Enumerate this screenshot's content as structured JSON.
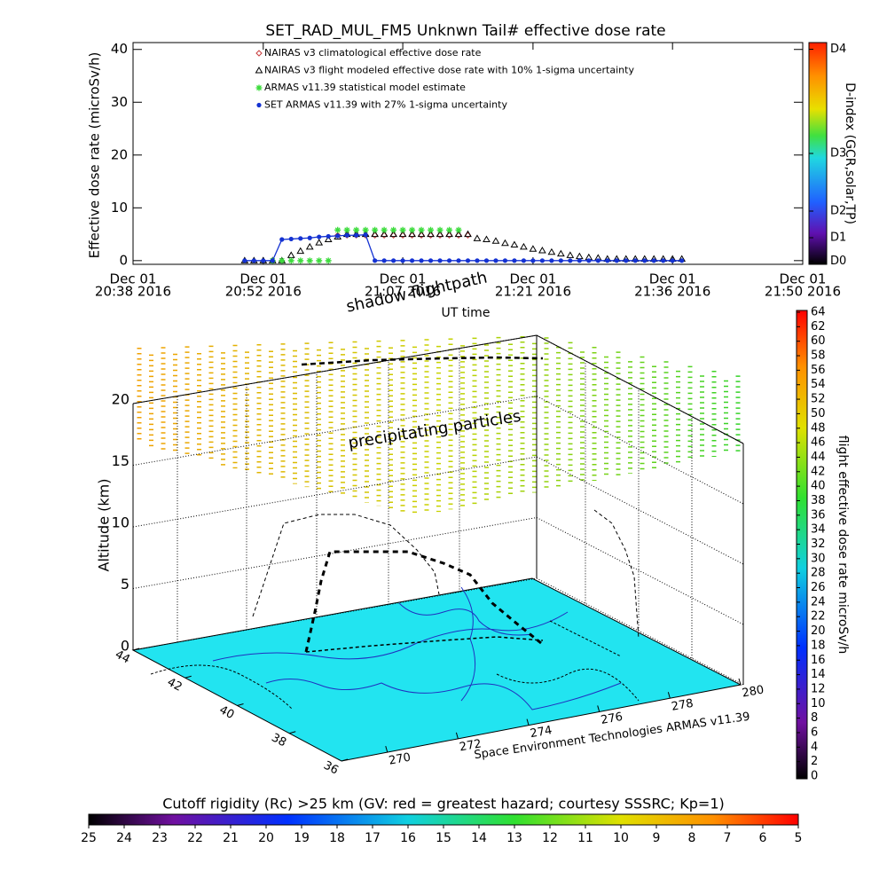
{
  "chart_data": [
    {
      "type": "line",
      "title": "SET_RAD_MUL_FM5 Unknwn Tail#  effective dose rate",
      "x_label": "UT time",
      "y_label": "Effective dose rate (microSv/h)",
      "x": [
        "20:50",
        "20:51",
        "20:52",
        "20:53",
        "20:54",
        "20:55",
        "20:56",
        "20:57",
        "20:58",
        "20:59",
        "21:00",
        "21:01",
        "21:02",
        "21:03",
        "21:04",
        "21:05",
        "21:06",
        "21:07",
        "21:08",
        "21:09",
        "21:10",
        "21:11",
        "21:12",
        "21:13",
        "21:14",
        "21:15",
        "21:16",
        "21:17",
        "21:18",
        "21:19",
        "21:20",
        "21:21",
        "21:22",
        "21:23",
        "21:24",
        "21:25",
        "21:26",
        "21:27",
        "21:28",
        "21:29",
        "21:30",
        "21:31",
        "21:32",
        "21:33",
        "21:34",
        "21:35",
        "21:36",
        "21:37"
      ],
      "xlim": [
        "20:38",
        "21:50"
      ],
      "xticks": [
        {
          "value": "20:38",
          "label": [
            "Dec 01",
            "20:38 2016"
          ]
        },
        {
          "value": "20:52",
          "label": [
            "Dec 01",
            "20:52 2016"
          ]
        },
        {
          "value": "21:07",
          "label": [
            "Dec 01",
            "21:07 2016"
          ]
        },
        {
          "value": "21:21",
          "label": [
            "Dec 01",
            "21:21 2016"
          ]
        },
        {
          "value": "21:36",
          "label": [
            "Dec 01",
            "21:36 2016"
          ]
        },
        {
          "value": "21:50",
          "label": [
            "Dec 01",
            "21:50 2016"
          ]
        }
      ],
      "ylim": [
        -0.7,
        41.3
      ],
      "yticks": [
        0,
        10,
        20,
        30,
        40
      ],
      "legend": "upper left",
      "series": [
        {
          "name": "NAIRAS v3 climatological effective dose rate",
          "color": "#c83c3c",
          "marker": "diamond",
          "values": [
            null,
            null,
            null,
            null,
            null,
            null,
            null,
            null,
            null,
            null,
            4.8,
            4.8,
            4.8,
            4.8,
            4.8,
            4.8,
            4.8,
            4.8,
            4.8,
            4.8,
            4.8,
            4.8,
            4.8,
            4.8,
            4.8,
            null,
            null,
            null,
            null,
            null,
            null,
            null,
            null,
            null,
            null,
            null,
            null,
            null,
            null,
            null,
            null,
            null,
            null,
            null,
            null,
            null,
            null,
            null
          ]
        },
        {
          "name": "NAIRAS v3 flight modeled effective dose rate with 10% 1-sigma uncertainty",
          "color": "#000000",
          "marker": "triangle",
          "values": [
            0,
            0,
            0,
            0,
            0,
            1.0,
            1.8,
            2.6,
            3.4,
            4.0,
            4.5,
            5.0,
            5.0,
            5.0,
            5.0,
            5.0,
            5.0,
            5.0,
            5.0,
            5.0,
            5.0,
            5.0,
            5.0,
            5.0,
            5.0,
            4.2,
            4.0,
            3.7,
            3.3,
            3.0,
            2.6,
            2.2,
            1.9,
            1.6,
            1.3,
            1.0,
            0.8,
            0.6,
            0.5,
            0.3,
            0.3,
            0.3,
            0.3,
            0.3,
            0.3,
            0.3,
            0.3,
            0.3
          ]
        },
        {
          "name": "ARMAS v11.39 statistical model estimate",
          "color": "#3cdc3c",
          "marker": "star",
          "values": [
            null,
            null,
            null,
            0,
            0,
            0,
            0,
            0,
            0,
            0,
            5.8,
            5.8,
            5.8,
            5.8,
            5.8,
            5.8,
            5.8,
            5.8,
            5.8,
            5.8,
            5.8,
            5.8,
            5.8,
            5.8,
            null,
            null,
            null,
            null,
            null,
            null,
            null,
            null,
            null,
            null,
            null,
            null,
            null,
            null,
            null,
            null,
            null,
            null,
            null,
            null,
            null,
            null,
            null,
            null
          ]
        },
        {
          "name": "SET ARMAS v11.39 with 27% 1-sigma uncertainty",
          "color": "#1432d2",
          "marker": "dot",
          "line": true,
          "values": [
            0,
            0,
            0,
            0,
            4.0,
            4.1,
            4.2,
            4.3,
            4.5,
            4.6,
            4.7,
            4.8,
            4.8,
            4.9,
            0,
            0,
            0,
            0,
            0,
            0,
            0,
            0,
            0,
            0,
            0,
            0,
            0,
            0,
            0,
            0,
            0,
            0,
            0,
            0,
            0,
            0,
            0,
            0,
            0,
            0,
            0,
            0,
            0,
            0,
            0,
            0,
            0,
            0
          ]
        }
      ],
      "colorbar": {
        "label": "D-index (GCR,solar,TP)",
        "ticks": [
          "D4",
          "D3",
          "D2",
          "D1",
          "D0"
        ]
      }
    },
    {
      "type": "surface3d",
      "annotations": [
        "shadow flightpath",
        "precipitating particles"
      ],
      "z_label": "Altitude (km)",
      "zlim": [
        0,
        20
      ],
      "zticks": [
        0,
        5,
        10,
        15,
        20
      ],
      "ylim": [
        36,
        44
      ],
      "yticks": [
        44,
        42,
        40,
        38,
        36
      ],
      "xlim": [
        268.7,
        280
      ],
      "xticks": [
        270,
        272,
        274,
        276,
        278,
        280
      ],
      "credit": "Space Environment Technologies ARMAS v11.39",
      "floor_color": "#22e4f0",
      "colorbar": {
        "label": "flight effective dose rate microSv/h",
        "lim": [
          0,
          64
        ],
        "ticks": [
          0,
          2,
          4,
          6,
          8,
          10,
          12,
          14,
          16,
          18,
          20,
          22,
          24,
          26,
          28,
          30,
          32,
          34,
          36,
          38,
          40,
          42,
          44,
          46,
          48,
          50,
          52,
          54,
          56,
          58,
          60,
          62,
          64
        ]
      }
    },
    {
      "type": "colorbar",
      "title": "Cutoff rigidity (Rc) >25 km (GV: red = greatest hazard; courtesy SSSRC; Kp=1)",
      "lim": [
        25,
        5
      ],
      "ticks": [
        25,
        24,
        23,
        22,
        21,
        20,
        19,
        18,
        17,
        16,
        15,
        14,
        13,
        12,
        11,
        10,
        9,
        8,
        7,
        6,
        5
      ]
    }
  ]
}
